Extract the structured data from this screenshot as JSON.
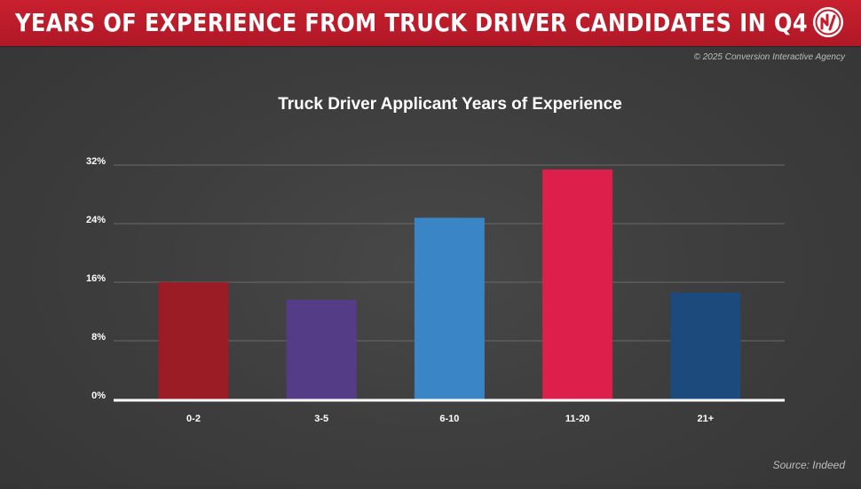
{
  "header": {
    "title": "YEARS OF EXPERIENCE FROM TRUCK DRIVER CANDIDATES IN Q4",
    "logo_icon": "brand-logo-icon",
    "accent_color": "#c41e2c"
  },
  "copyright": "© 2025 Conversion Interactive Agency",
  "source": "Source: Indeed",
  "chart_data": {
    "type": "bar",
    "title": "Truck Driver Applicant Years of Experience",
    "xlabel": "",
    "ylabel": "",
    "categories": [
      "0-2",
      "3-5",
      "6-10",
      "11-20",
      "21+"
    ],
    "values": [
      16,
      13.6,
      24.8,
      31.4,
      14.6
    ],
    "unit": "%",
    "ylim": [
      0,
      32
    ],
    "yticks": [
      0,
      8,
      16,
      24,
      32
    ],
    "ytick_labels": [
      "0%",
      "8%",
      "16%",
      "24%",
      "32%"
    ],
    "colors": [
      "#9b1c24",
      "#553c86",
      "#3985c6",
      "#dc1f4b",
      "#1c4a7c"
    ],
    "grid": true,
    "legend": "none"
  }
}
